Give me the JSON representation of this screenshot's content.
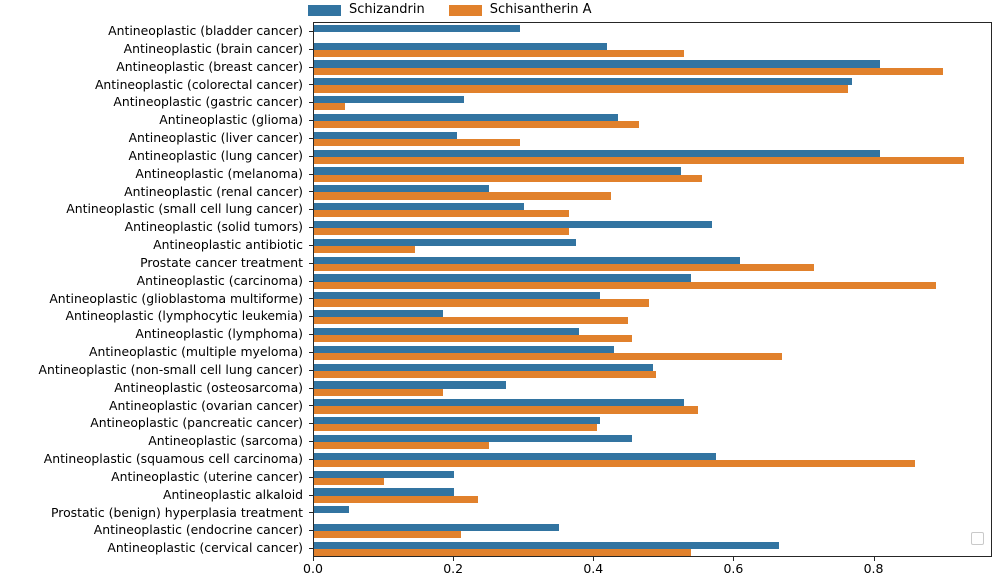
{
  "figure": {
    "background": "#ffffff",
    "has_empty_legend_box_bottom_right": true
  },
  "legend": {
    "items": [
      {
        "label": "Schizandrin",
        "color": "#3274a1"
      },
      {
        "label": "Schisantherin A",
        "color": "#e1812c"
      }
    ]
  },
  "chart_data": {
    "type": "bar",
    "orientation": "horizontal",
    "title": "",
    "xlabel": "",
    "ylabel": "",
    "grid": false,
    "legend_position": "top-center-outside",
    "xlim": [
      0,
      0.969
    ],
    "x_ticks": [
      0.0,
      0.2,
      0.4,
      0.6,
      0.8
    ],
    "x_tick_labels": [
      "0.0",
      "0.2",
      "0.4",
      "0.6",
      "0.8"
    ],
    "categories": [
      "Antineoplastic (bladder cancer)",
      "Antineoplastic (brain cancer)",
      "Antineoplastic (breast cancer)",
      "Antineoplastic (colorectal cancer)",
      "Antineoplastic (gastric cancer)",
      "Antineoplastic (glioma)",
      "Antineoplastic (liver cancer)",
      "Antineoplastic (lung cancer)",
      "Antineoplastic (melanoma)",
      "Antineoplastic (renal cancer)",
      "Antineoplastic (small cell lung cancer)",
      "Antineoplastic (solid tumors)",
      "Antineoplastic antibiotic",
      "Prostate cancer treatment",
      "Antineoplastic (carcinoma)",
      "Antineoplastic (glioblastoma multiforme)",
      "Antineoplastic (lymphocytic leukemia)",
      "Antineoplastic (lymphoma)",
      "Antineoplastic (multiple myeloma)",
      "Antineoplastic (non-small cell lung cancer)",
      "Antineoplastic (osteosarcoma)",
      "Antineoplastic (ovarian cancer)",
      "Antineoplastic (pancreatic cancer)",
      "Antineoplastic (sarcoma)",
      "Antineoplastic (squamous cell carcinoma)",
      "Antineoplastic (uterine cancer)",
      "Antineoplastic alkaloid",
      "Prostatic (benign) hyperplasia treatment",
      "Antineoplastic (endocrine cancer)",
      "Antineoplastic (cervical cancer)"
    ],
    "series": [
      {
        "name": "Schizandrin",
        "color": "#3274a1",
        "values": [
          0.295,
          0.42,
          0.81,
          0.77,
          0.215,
          0.435,
          0.205,
          0.81,
          0.525,
          0.25,
          0.3,
          0.57,
          0.375,
          0.61,
          0.54,
          0.41,
          0.185,
          0.38,
          0.43,
          0.485,
          0.275,
          0.53,
          0.41,
          0.455,
          0.575,
          0.2,
          0.2,
          0.05,
          0.35,
          0.665
        ]
      },
      {
        "name": "Schisantherin A",
        "color": "#e1812c",
        "values": [
          0.0,
          0.53,
          0.9,
          0.765,
          0.045,
          0.465,
          0.295,
          0.93,
          0.555,
          0.425,
          0.365,
          0.365,
          0.145,
          0.715,
          0.89,
          0.48,
          0.45,
          0.455,
          0.67,
          0.49,
          0.185,
          0.55,
          0.405,
          0.25,
          0.86,
          0.1,
          0.235,
          0.0,
          0.21,
          0.54
        ]
      }
    ]
  }
}
